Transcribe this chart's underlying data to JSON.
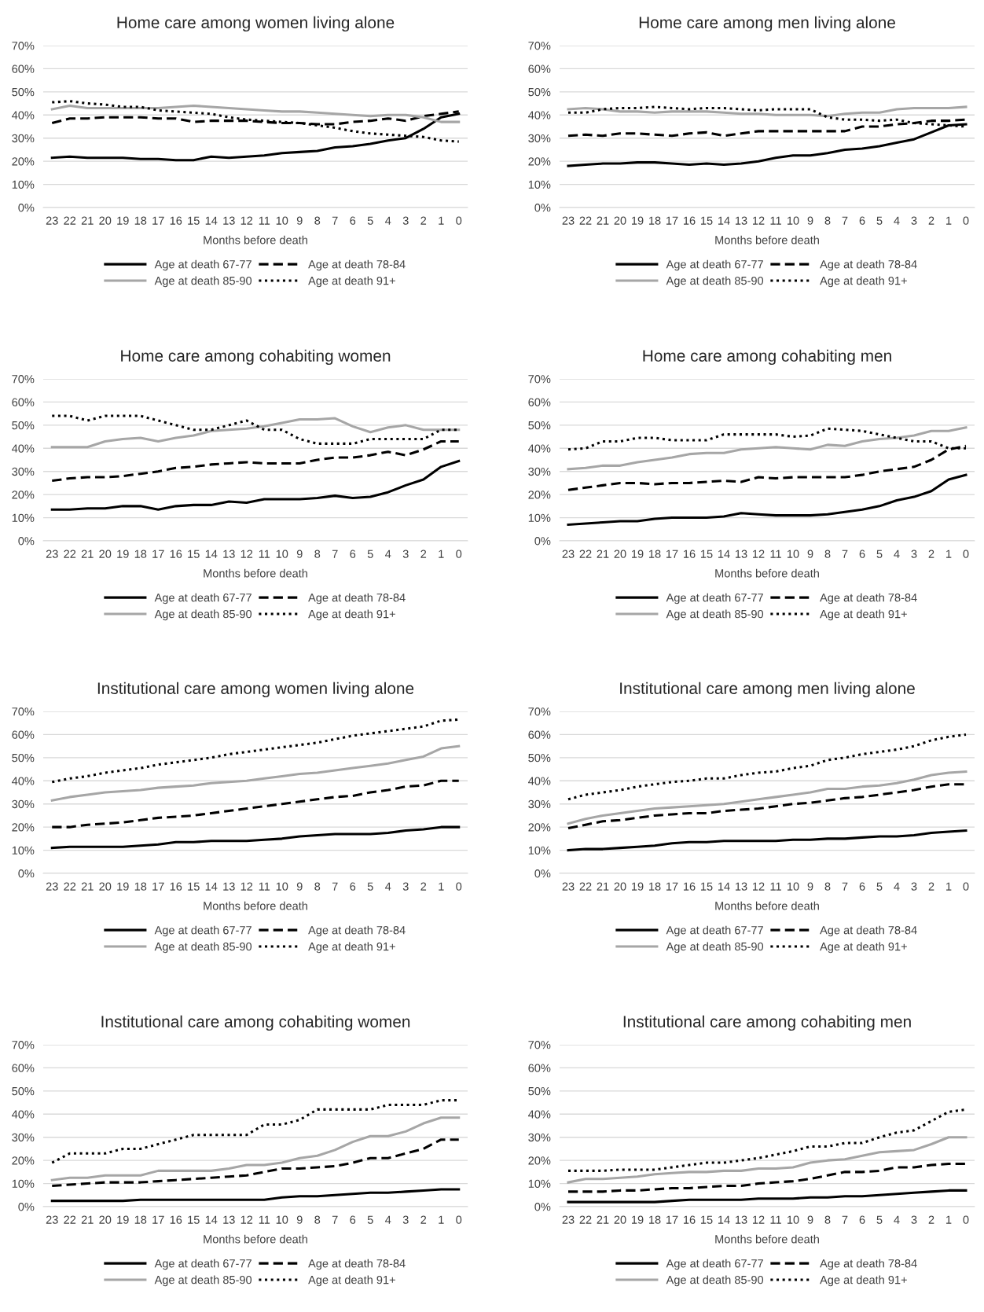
{
  "chart_data": [
    {
      "type": "line",
      "title": "Home care among women living alone",
      "xlabel": "Months before death",
      "categories": [
        "23",
        "22",
        "21",
        "20",
        "19",
        "18",
        "17",
        "16",
        "15",
        "14",
        "13",
        "12",
        "11",
        "10",
        "9",
        "8",
        "7",
        "6",
        "5",
        "4",
        "3",
        "2",
        "1",
        "0"
      ],
      "ylim": [
        0,
        70
      ],
      "yticks": [
        {
          "value": 0,
          "label": "0%"
        },
        {
          "value": 10,
          "label": "10%"
        },
        {
          "value": 20,
          "label": "20%"
        },
        {
          "value": 30,
          "label": "30%"
        },
        {
          "value": 40,
          "label": "40%"
        },
        {
          "value": 50,
          "label": "50%"
        },
        {
          "value": 60,
          "label": "60%"
        },
        {
          "value": 70,
          "label": "70%"
        }
      ],
      "grid": "y",
      "legend": "bottom",
      "series": [
        {
          "name": "Age at death 67-77",
          "color": "#000000",
          "line_style": "solid",
          "values": [
            21.5,
            22,
            21.5,
            21.5,
            21.5,
            21,
            21,
            20.5,
            20.5,
            22,
            21.5,
            22,
            22.5,
            23.5,
            24,
            24.5,
            26,
            26.5,
            27.5,
            29,
            30,
            34,
            39,
            40.5
          ]
        },
        {
          "name": "Age at death 78-84",
          "color": "#000000",
          "line_style": "dashed",
          "values": [
            36.5,
            38.5,
            38.5,
            39,
            39,
            39,
            38.5,
            38.5,
            37,
            37.5,
            37.5,
            37.5,
            37,
            36.5,
            36.5,
            36,
            36,
            37,
            37.5,
            38.5,
            37.5,
            39.5,
            40.5,
            41.5
          ]
        },
        {
          "name": "Age at death 85-90",
          "color": "#a6a6a6",
          "line_style": "solid",
          "values": [
            42.5,
            44,
            43,
            43,
            43,
            43,
            43,
            43.5,
            44,
            43.5,
            43,
            42.5,
            42,
            41.5,
            41.5,
            41,
            40.5,
            40,
            39.5,
            40,
            40,
            39,
            37,
            37
          ]
        },
        {
          "name": "Age at death 91+",
          "color": "#000000",
          "line_style": "dotted",
          "values": [
            45.5,
            46,
            45,
            44.5,
            43.5,
            43.5,
            42,
            41.5,
            41,
            40.5,
            39,
            38,
            37.5,
            37,
            36.5,
            35.5,
            34.5,
            33,
            32,
            31.5,
            31,
            30.5,
            29,
            28.5
          ]
        }
      ]
    },
    {
      "type": "line",
      "title": "Home care among men living alone",
      "xlabel": "Months before death",
      "categories": [
        "23",
        "22",
        "21",
        "20",
        "19",
        "18",
        "17",
        "16",
        "15",
        "14",
        "13",
        "12",
        "11",
        "10",
        "9",
        "8",
        "7",
        "6",
        "5",
        "4",
        "3",
        "2",
        "1",
        "0"
      ],
      "ylim": [
        0,
        70
      ],
      "yticks": [
        {
          "value": 0,
          "label": "0%"
        },
        {
          "value": 10,
          "label": "10%"
        },
        {
          "value": 20,
          "label": "20%"
        },
        {
          "value": 30,
          "label": "30%"
        },
        {
          "value": 40,
          "label": "40%"
        },
        {
          "value": 50,
          "label": "50%"
        },
        {
          "value": 60,
          "label": "60%"
        },
        {
          "value": 70,
          "label": "70%"
        }
      ],
      "grid": "y",
      "legend": "bottom",
      "series": [
        {
          "name": "Age at death 67-77",
          "color": "#000000",
          "line_style": "solid",
          "values": [
            18,
            18.5,
            19,
            19,
            19.5,
            19.5,
            19,
            18.5,
            19,
            18.5,
            19,
            20,
            21.5,
            22.5,
            22.5,
            23.5,
            25,
            25.5,
            26.5,
            28,
            29.5,
            32.5,
            35.5,
            36
          ]
        },
        {
          "name": "Age at death 78-84",
          "color": "#000000",
          "line_style": "dashed",
          "values": [
            31,
            31.5,
            31,
            32,
            32,
            31.5,
            31,
            32,
            32.5,
            31,
            32,
            33,
            33,
            33,
            33,
            33,
            33,
            35,
            35,
            36,
            36.5,
            37.5,
            37.5,
            38
          ]
        },
        {
          "name": "Age at death 85-90",
          "color": "#a6a6a6",
          "line_style": "solid",
          "values": [
            42.5,
            43,
            42.5,
            41.5,
            41.5,
            41,
            41.5,
            41.5,
            41.5,
            41,
            40.5,
            40.5,
            40,
            40,
            40,
            39.5,
            40.5,
            41,
            41,
            42.5,
            43,
            43,
            43,
            43.5
          ]
        },
        {
          "name": "Age at death 91+",
          "color": "#000000",
          "line_style": "dotted",
          "values": [
            41,
            41,
            42.5,
            43,
            43,
            43.5,
            43,
            42.5,
            43,
            43,
            42.5,
            42,
            42.5,
            42.5,
            42.5,
            39,
            38,
            38,
            37.5,
            38,
            36.5,
            36,
            35.5,
            35
          ]
        }
      ]
    },
    {
      "type": "line",
      "title": "Home care among cohabiting women",
      "xlabel": "Months before death",
      "categories": [
        "23",
        "22",
        "21",
        "20",
        "19",
        "18",
        "17",
        "16",
        "15",
        "14",
        "13",
        "12",
        "11",
        "10",
        "9",
        "8",
        "7",
        "6",
        "5",
        "4",
        "3",
        "2",
        "1",
        "0"
      ],
      "ylim": [
        0,
        70
      ],
      "yticks": [
        {
          "value": 0,
          "label": "0%"
        },
        {
          "value": 10,
          "label": "10%"
        },
        {
          "value": 20,
          "label": "20%"
        },
        {
          "value": 30,
          "label": "30%"
        },
        {
          "value": 40,
          "label": "40%"
        },
        {
          "value": 50,
          "label": "50%"
        },
        {
          "value": 60,
          "label": "60%"
        },
        {
          "value": 70,
          "label": "70%"
        }
      ],
      "grid": "y",
      "legend": "bottom",
      "series": [
        {
          "name": "Age at death 67-77",
          "color": "#000000",
          "line_style": "solid",
          "values": [
            13.5,
            13.5,
            14,
            14,
            15,
            15,
            13.5,
            15,
            15.5,
            15.5,
            17,
            16.5,
            18,
            18,
            18,
            18.5,
            19.5,
            18.5,
            19,
            21,
            24,
            26.5,
            32,
            34.5
          ]
        },
        {
          "name": "Age at death 78-84",
          "color": "#000000",
          "line_style": "dashed",
          "values": [
            26,
            27,
            27.5,
            27.5,
            28,
            29,
            30,
            31.5,
            32,
            33,
            33.5,
            34,
            33.5,
            33.5,
            33.5,
            35,
            36,
            36,
            37,
            38.5,
            37,
            39.5,
            43,
            43
          ]
        },
        {
          "name": "Age at death 85-90",
          "color": "#a6a6a6",
          "line_style": "solid",
          "values": [
            40.5,
            40.5,
            40.5,
            43,
            44,
            44.5,
            43,
            44.5,
            45.5,
            47.5,
            48,
            48.5,
            49.5,
            51,
            52.5,
            52.5,
            53,
            49.5,
            47,
            49,
            50,
            48,
            48,
            48
          ]
        },
        {
          "name": "Age at death 91+",
          "color": "#000000",
          "line_style": "dotted",
          "values": [
            54,
            54,
            52,
            54,
            54,
            54,
            52,
            50,
            48,
            48,
            50,
            52,
            48,
            48,
            44,
            42,
            42,
            42,
            44,
            44,
            44,
            44,
            48,
            48
          ]
        }
      ]
    },
    {
      "type": "line",
      "title": "Home care among cohabiting men",
      "xlabel": "Months before death",
      "categories": [
        "23",
        "22",
        "21",
        "20",
        "19",
        "18",
        "17",
        "16",
        "15",
        "14",
        "13",
        "12",
        "11",
        "10",
        "9",
        "8",
        "7",
        "6",
        "5",
        "4",
        "3",
        "2",
        "1",
        "0"
      ],
      "ylim": [
        0,
        70
      ],
      "yticks": [
        {
          "value": 0,
          "label": "0%"
        },
        {
          "value": 10,
          "label": "10%"
        },
        {
          "value": 20,
          "label": "20%"
        },
        {
          "value": 30,
          "label": "30%"
        },
        {
          "value": 40,
          "label": "40%"
        },
        {
          "value": 50,
          "label": "50%"
        },
        {
          "value": 60,
          "label": "60%"
        },
        {
          "value": 70,
          "label": "70%"
        }
      ],
      "grid": "y",
      "legend": "bottom",
      "series": [
        {
          "name": "Age at death 67-77",
          "color": "#000000",
          "line_style": "solid",
          "values": [
            7,
            7.5,
            8,
            8.5,
            8.5,
            9.5,
            10,
            10,
            10,
            10.5,
            12,
            11.5,
            11,
            11,
            11,
            11.5,
            12.5,
            13.5,
            15,
            17.5,
            19,
            21.5,
            26.5,
            28.5
          ]
        },
        {
          "name": "Age at death 78-84",
          "color": "#000000",
          "line_style": "dashed",
          "values": [
            22,
            23,
            24,
            25,
            25,
            24.5,
            25,
            25,
            25.5,
            26,
            25.5,
            27.5,
            27,
            27.5,
            27.5,
            27.5,
            27.5,
            28.5,
            30,
            31,
            32,
            35,
            39.5,
            41
          ]
        },
        {
          "name": "Age at death 85-90",
          "color": "#a6a6a6",
          "line_style": "solid",
          "values": [
            31,
            31.5,
            32.5,
            32.5,
            34,
            35,
            36,
            37.5,
            38,
            38,
            39.5,
            40,
            40.5,
            40,
            39.5,
            41.5,
            41,
            43,
            44,
            44.5,
            45.5,
            47.5,
            47.5,
            49
          ]
        },
        {
          "name": "Age at death 91+",
          "color": "#000000",
          "line_style": "dotted",
          "values": [
            39.5,
            40,
            43,
            43,
            44.5,
            44.5,
            43.5,
            43.5,
            43.5,
            46,
            46,
            46,
            46,
            45,
            45.5,
            48.5,
            48,
            47.5,
            46,
            44.5,
            43,
            43,
            40,
            40
          ]
        }
      ]
    },
    {
      "type": "line",
      "title": "Institutional care among women living alone",
      "xlabel": "Months before death",
      "categories": [
        "23",
        "22",
        "21",
        "20",
        "19",
        "18",
        "17",
        "16",
        "15",
        "14",
        "13",
        "12",
        "11",
        "10",
        "9",
        "8",
        "7",
        "6",
        "5",
        "4",
        "3",
        "2",
        "1",
        "0"
      ],
      "ylim": [
        0,
        70
      ],
      "yticks": [
        {
          "value": 0,
          "label": "0%"
        },
        {
          "value": 10,
          "label": "10%"
        },
        {
          "value": 20,
          "label": "20%"
        },
        {
          "value": 30,
          "label": "30%"
        },
        {
          "value": 40,
          "label": "40%"
        },
        {
          "value": 50,
          "label": "50%"
        },
        {
          "value": 60,
          "label": "60%"
        },
        {
          "value": 70,
          "label": "70%"
        }
      ],
      "grid": "y",
      "legend": "bottom",
      "series": [
        {
          "name": "Age at death 67-77",
          "color": "#000000",
          "line_style": "solid",
          "values": [
            11,
            11.5,
            11.5,
            11.5,
            11.5,
            12,
            12.5,
            13.5,
            13.5,
            14,
            14,
            14,
            14.5,
            15,
            16,
            16.5,
            17,
            17,
            17,
            17.5,
            18.5,
            19,
            20,
            20
          ]
        },
        {
          "name": "Age at death 78-84",
          "color": "#000000",
          "line_style": "dashed",
          "values": [
            20,
            20,
            21,
            21.5,
            22,
            23,
            24,
            24.5,
            25,
            26,
            27,
            28,
            29,
            30,
            31,
            32,
            33,
            33.5,
            35,
            36,
            37.5,
            38,
            40,
            40
          ]
        },
        {
          "name": "Age at death 85-90",
          "color": "#a6a6a6",
          "line_style": "solid",
          "values": [
            31.5,
            33,
            34,
            35,
            35.5,
            36,
            37,
            37.5,
            38,
            39,
            39.5,
            40,
            41,
            42,
            43,
            43.5,
            44.5,
            45.5,
            46.5,
            47.5,
            49,
            50.5,
            54,
            55
          ]
        },
        {
          "name": "Age at death 91+",
          "color": "#000000",
          "line_style": "dotted",
          "values": [
            39.5,
            41,
            42,
            43.5,
            44.5,
            45.5,
            47,
            48,
            49,
            50,
            51.5,
            52.5,
            53.5,
            54.5,
            55.5,
            56.5,
            58,
            59.5,
            60.5,
            61.5,
            62.5,
            63.5,
            66,
            66.5
          ]
        }
      ]
    },
    {
      "type": "line",
      "title": "Institutional care among men living alone",
      "xlabel": "Months before death",
      "categories": [
        "23",
        "22",
        "21",
        "20",
        "19",
        "18",
        "17",
        "16",
        "15",
        "14",
        "13",
        "12",
        "11",
        "10",
        "9",
        "8",
        "7",
        "6",
        "5",
        "4",
        "3",
        "2",
        "1",
        "0"
      ],
      "ylim": [
        0,
        70
      ],
      "yticks": [
        {
          "value": 0,
          "label": "0%"
        },
        {
          "value": 10,
          "label": "10%"
        },
        {
          "value": 20,
          "label": "20%"
        },
        {
          "value": 30,
          "label": "30%"
        },
        {
          "value": 40,
          "label": "40%"
        },
        {
          "value": 50,
          "label": "50%"
        },
        {
          "value": 60,
          "label": "60%"
        },
        {
          "value": 70,
          "label": "70%"
        }
      ],
      "grid": "y",
      "legend": "bottom",
      "series": [
        {
          "name": "Age at death 67-77",
          "color": "#000000",
          "line_style": "solid",
          "values": [
            10,
            10.5,
            10.5,
            11,
            11.5,
            12,
            13,
            13.5,
            13.5,
            14,
            14,
            14,
            14,
            14.5,
            14.5,
            15,
            15,
            15.5,
            16,
            16,
            16.5,
            17.5,
            18,
            18.5
          ]
        },
        {
          "name": "Age at death 78-84",
          "color": "#000000",
          "line_style": "dashed",
          "values": [
            19.5,
            21,
            22.5,
            23,
            24,
            25,
            25.5,
            26,
            26,
            27,
            27.5,
            28,
            29,
            30,
            30.5,
            31.5,
            32.5,
            33,
            34,
            35,
            36,
            37.5,
            38.5,
            38.5
          ]
        },
        {
          "name": "Age at death 85-90",
          "color": "#a6a6a6",
          "line_style": "solid",
          "values": [
            21.5,
            23.5,
            25,
            26,
            27,
            28,
            28.5,
            29,
            29.5,
            30,
            31,
            32,
            33,
            34,
            35,
            36.5,
            36.5,
            37.5,
            38,
            39,
            40.5,
            42.5,
            43.5,
            44
          ]
        },
        {
          "name": "Age at death 91+",
          "color": "#000000",
          "line_style": "dotted",
          "values": [
            32,
            34,
            35,
            36,
            37.5,
            38.5,
            39.5,
            40,
            41,
            41,
            42.5,
            43.5,
            44,
            45.5,
            46.5,
            49,
            50,
            51.5,
            52.5,
            53.5,
            55,
            57.5,
            59,
            60
          ]
        }
      ]
    },
    {
      "type": "line",
      "title": "Institutional care among cohabiting women",
      "xlabel": "Months before death",
      "categories": [
        "23",
        "22",
        "21",
        "20",
        "19",
        "18",
        "17",
        "16",
        "15",
        "14",
        "13",
        "12",
        "11",
        "10",
        "9",
        "8",
        "7",
        "6",
        "5",
        "4",
        "3",
        "2",
        "1",
        "0"
      ],
      "ylim": [
        0,
        70
      ],
      "yticks": [
        {
          "value": 0,
          "label": "0%"
        },
        {
          "value": 10,
          "label": "10%"
        },
        {
          "value": 20,
          "label": "20%"
        },
        {
          "value": 30,
          "label": "30%"
        },
        {
          "value": 40,
          "label": "40%"
        },
        {
          "value": 50,
          "label": "50%"
        },
        {
          "value": 60,
          "label": "60%"
        },
        {
          "value": 70,
          "label": "70%"
        }
      ],
      "grid": "y",
      "legend": "bottom",
      "series": [
        {
          "name": "Age at death 67-77",
          "color": "#000000",
          "line_style": "solid",
          "values": [
            2.5,
            2.5,
            2.5,
            2.5,
            2.5,
            3,
            3,
            3,
            3,
            3,
            3,
            3,
            3,
            4,
            4.5,
            4.5,
            5,
            5.5,
            6,
            6,
            6.5,
            7,
            7.5,
            7.5
          ]
        },
        {
          "name": "Age at death 78-84",
          "color": "#000000",
          "line_style": "dashed",
          "values": [
            9,
            9.5,
            10,
            10.5,
            10.5,
            10.5,
            11,
            11.5,
            12,
            12.5,
            13,
            13.5,
            15,
            16.5,
            16.5,
            17,
            17.5,
            19,
            21,
            21,
            23,
            25,
            29,
            29
          ]
        },
        {
          "name": "Age at death 85-90",
          "color": "#a6a6a6",
          "line_style": "solid",
          "values": [
            11.5,
            12.5,
            12.5,
            13.5,
            13.5,
            13.5,
            15.5,
            15.5,
            15.5,
            15.5,
            16.5,
            18,
            18,
            19,
            21,
            22,
            24.5,
            28,
            30.5,
            30.5,
            32.5,
            36,
            38.5,
            38.5
          ]
        },
        {
          "name": "Age at death 91+",
          "color": "#000000",
          "line_style": "dotted",
          "values": [
            19,
            23,
            23,
            23,
            25,
            25,
            27,
            29,
            31,
            31,
            31,
            31,
            35.5,
            35.5,
            37.5,
            42,
            42,
            42,
            42,
            44,
            44,
            44,
            46,
            46
          ]
        }
      ]
    },
    {
      "type": "line",
      "title": "Institutional care among cohabiting men",
      "xlabel": "Months before death",
      "categories": [
        "23",
        "22",
        "21",
        "20",
        "19",
        "18",
        "17",
        "16",
        "15",
        "14",
        "13",
        "12",
        "11",
        "10",
        "9",
        "8",
        "7",
        "6",
        "5",
        "4",
        "3",
        "2",
        "1",
        "0"
      ],
      "ylim": [
        0,
        70
      ],
      "yticks": [
        {
          "value": 0,
          "label": "0%"
        },
        {
          "value": 10,
          "label": "10%"
        },
        {
          "value": 20,
          "label": "20%"
        },
        {
          "value": 30,
          "label": "30%"
        },
        {
          "value": 40,
          "label": "40%"
        },
        {
          "value": 50,
          "label": "50%"
        },
        {
          "value": 60,
          "label": "60%"
        },
        {
          "value": 70,
          "label": "70%"
        }
      ],
      "grid": "y",
      "legend": "bottom",
      "series": [
        {
          "name": "Age at death 67-77",
          "color": "#000000",
          "line_style": "solid",
          "values": [
            2,
            2,
            2,
            2,
            2,
            2,
            2.5,
            3,
            3,
            3,
            3,
            3.5,
            3.5,
            3.5,
            4,
            4,
            4.5,
            4.5,
            5,
            5.5,
            6,
            6.5,
            7,
            7
          ]
        },
        {
          "name": "Age at death 78-84",
          "color": "#000000",
          "line_style": "dashed",
          "values": [
            6.5,
            6.5,
            6.5,
            7,
            7,
            7.5,
            8,
            8,
            8.5,
            9,
            9,
            10,
            10.5,
            11,
            12,
            13.5,
            15,
            15,
            15.5,
            17,
            17,
            18,
            18.5,
            18.5
          ]
        },
        {
          "name": "Age at death 85-90",
          "color": "#a6a6a6",
          "line_style": "solid",
          "values": [
            10.5,
            12,
            12,
            12.5,
            13,
            14,
            14.5,
            15,
            15,
            15.5,
            15.5,
            16.5,
            16.5,
            17,
            19,
            20,
            20.5,
            22,
            23.5,
            24,
            24.5,
            27,
            30,
            30
          ]
        },
        {
          "name": "Age at death 91+",
          "color": "#000000",
          "line_style": "dotted",
          "values": [
            15.5,
            15.5,
            15.5,
            16,
            16,
            16,
            17,
            18,
            19,
            19,
            20,
            21,
            22.5,
            24,
            26,
            26,
            27.5,
            27.5,
            30,
            32,
            33,
            37,
            41,
            42
          ]
        }
      ]
    }
  ]
}
